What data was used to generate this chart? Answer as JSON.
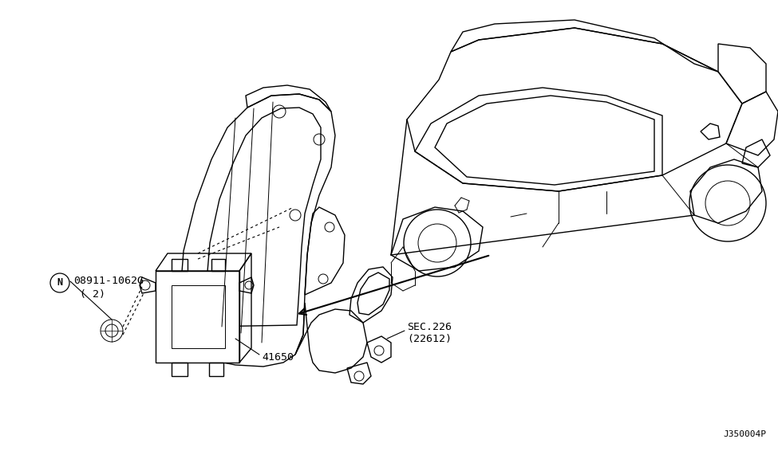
{
  "bg_color": "#ffffff",
  "line_color": "#000000",
  "fig_width": 9.75,
  "fig_height": 5.66,
  "dpi": 100,
  "watermark": "J350004P",
  "labels": {
    "part_num": "08911-1062G",
    "part_qty": "( 2)",
    "part_41650": "41650",
    "sec_label": "SEC.226",
    "sec_sub": "(22612)",
    "N_circle": "N"
  }
}
